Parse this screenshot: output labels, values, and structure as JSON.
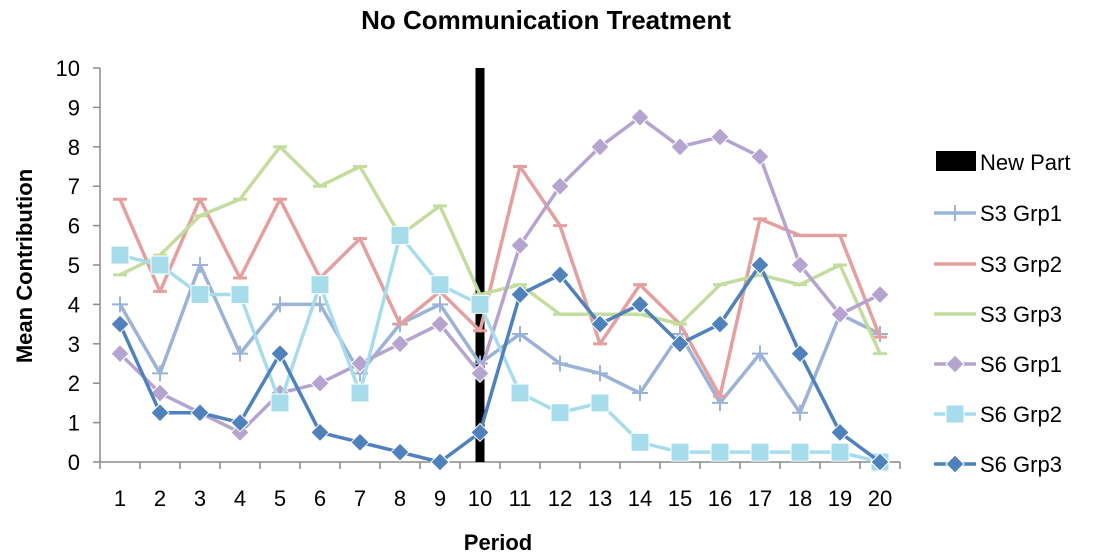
{
  "chart_data": {
    "type": "line",
    "title": "No Communication Treatment",
    "xlabel": "Period",
    "ylabel": "Mean Contribution",
    "x": [
      1,
      2,
      3,
      4,
      5,
      6,
      7,
      8,
      9,
      10,
      11,
      12,
      13,
      14,
      15,
      16,
      17,
      18,
      19,
      20
    ],
    "ylim": [
      0,
      10
    ],
    "yticks": [
      0,
      1,
      2,
      3,
      4,
      5,
      6,
      7,
      8,
      9,
      10
    ],
    "grid": false,
    "legend_position": "right",
    "marker_line": {
      "name": "New Part",
      "x": 10,
      "color": "#000000"
    },
    "series": [
      {
        "name": "S3 Grp1",
        "color": "#9bb3d6",
        "marker": "plus",
        "values": [
          4,
          2.25,
          5,
          2.75,
          4,
          4,
          2.25,
          3.5,
          4,
          2.5,
          3.25,
          2.5,
          2.25,
          1.75,
          3.25,
          1.5,
          2.75,
          1.25,
          3.75,
          3.25
        ]
      },
      {
        "name": "S3 Grp2",
        "color": "#e3a09e",
        "marker": "dash",
        "values": [
          6.67,
          4.33,
          6.67,
          4.67,
          6.67,
          4.67,
          5.67,
          3.5,
          4.33,
          3.33,
          7.5,
          6,
          3,
          4.5,
          3.5,
          1.67,
          6.17,
          5.75,
          5.75,
          3.17
        ]
      },
      {
        "name": "S3 Grp3",
        "color": "#c4dc9e",
        "marker": "dash",
        "values": [
          4.75,
          5.25,
          6.25,
          6.67,
          8,
          7,
          7.5,
          5.75,
          6.5,
          4.25,
          4.5,
          3.75,
          3.75,
          3.75,
          3.5,
          4.5,
          4.75,
          4.5,
          5,
          2.75
        ]
      },
      {
        "name": "S6 Grp1",
        "color": "#b6a4d0",
        "marker": "diamond",
        "values": [
          2.75,
          1.75,
          1.25,
          0.75,
          1.75,
          2,
          2.5,
          3,
          3.5,
          2.25,
          5.5,
          7,
          8,
          8.75,
          8,
          8.25,
          7.75,
          5,
          3.75,
          4.25
        ]
      },
      {
        "name": "S6 Grp2",
        "color": "#a6dcec",
        "marker": "square",
        "values": [
          5.25,
          5,
          4.25,
          4.25,
          1.5,
          4.5,
          1.75,
          5.75,
          4.5,
          4,
          1.75,
          1.25,
          1.5,
          0.5,
          0.25,
          0.25,
          0.25,
          0.25,
          0.25,
          0
        ]
      },
      {
        "name": "S6 Grp3",
        "color": "#4f81bd",
        "marker": "diamond",
        "values": [
          3.5,
          1.25,
          1.25,
          1,
          2.75,
          0.75,
          0.5,
          0.25,
          0,
          0.75,
          4.25,
          4.75,
          3.5,
          4,
          3,
          3.5,
          5,
          2.75,
          0.75,
          0
        ]
      }
    ]
  }
}
